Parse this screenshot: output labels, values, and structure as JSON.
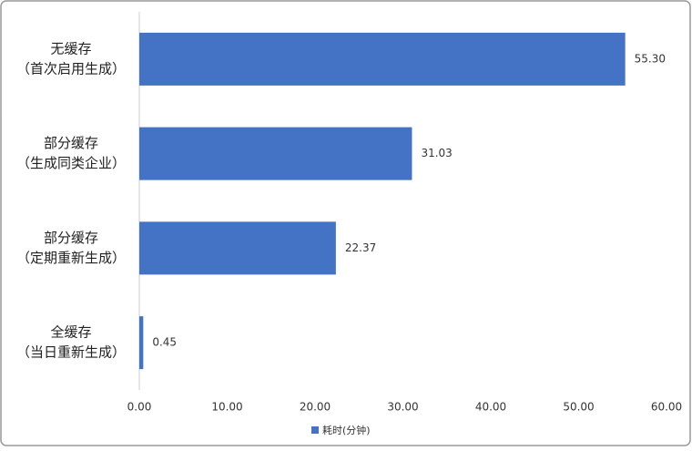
{
  "chart_data": {
    "type": "hbar",
    "categories": [
      [
        "无缓存",
        "（首次启用生成）"
      ],
      [
        "部分缓存",
        "（生成同类企业）"
      ],
      [
        "部分缓存",
        "（定期重新生成）"
      ],
      [
        "全缓存",
        "（当日重新生成）"
      ]
    ],
    "series": [
      {
        "name": "耗时(分钟)",
        "color": "#4472c4",
        "values": [
          55.3,
          31.03,
          22.37,
          0.45
        ],
        "value_labels": [
          "55.30",
          "31.03",
          "22.37",
          "0.45"
        ]
      }
    ],
    "xlim": [
      0,
      60
    ],
    "xticks": [
      {
        "value": 0,
        "label": "0.00"
      },
      {
        "value": 10,
        "label": "10.00"
      },
      {
        "value": 20,
        "label": "20.00"
      },
      {
        "value": 30,
        "label": "30.00"
      },
      {
        "value": 40,
        "label": "40.00"
      },
      {
        "value": 50,
        "label": "50.00"
      },
      {
        "value": 60,
        "label": "60.00"
      }
    ],
    "grid": false,
    "legend": "bottom"
  }
}
